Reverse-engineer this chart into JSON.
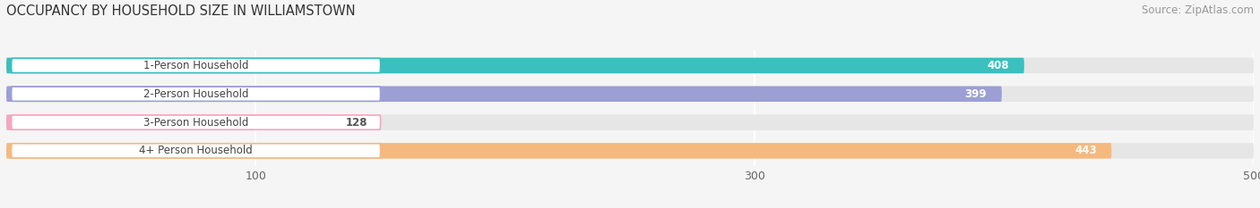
{
  "title": "OCCUPANCY BY HOUSEHOLD SIZE IN WILLIAMSTOWN",
  "source": "Source: ZipAtlas.com",
  "categories": [
    "1-Person Household",
    "2-Person Household",
    "3-Person Household",
    "4+ Person Household"
  ],
  "values": [
    408,
    399,
    128,
    443
  ],
  "bar_colors": [
    "#3bbfbf",
    "#9b9fd4",
    "#f4a6c0",
    "#f5b97f"
  ],
  "xlim": [
    0,
    500
  ],
  "xticks": [
    100,
    300,
    500
  ],
  "fig_bg": "#f5f5f5",
  "track_color": "#e6e6e6",
  "title_fontsize": 10.5,
  "source_fontsize": 8.5,
  "label_fontsize": 8.5,
  "value_fontsize": 8.5,
  "tick_fontsize": 9,
  "figsize": [
    14.06,
    2.33
  ],
  "dpi": 100
}
